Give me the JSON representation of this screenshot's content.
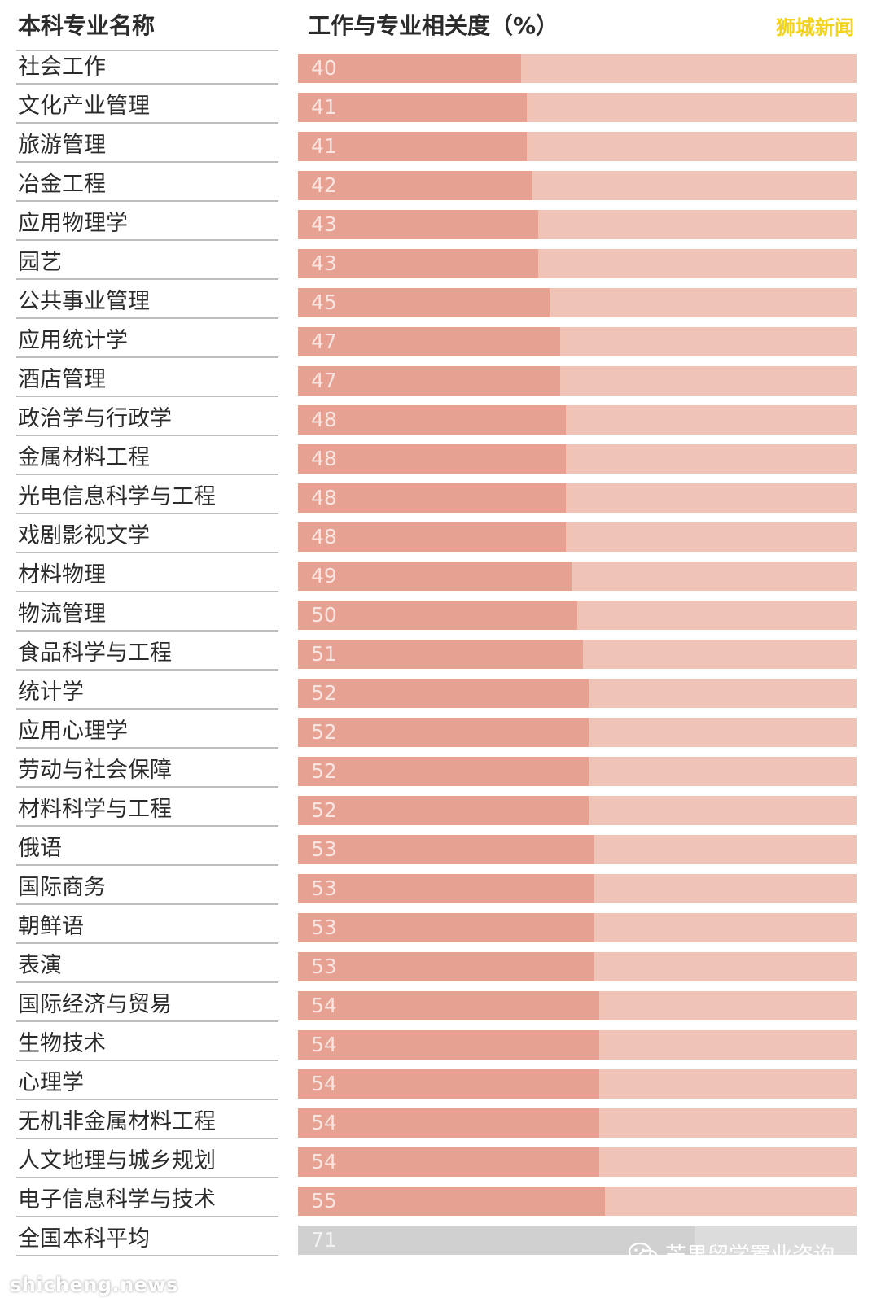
{
  "header": {
    "left_label": "本科专业名称",
    "right_label": "工作与专业相关度（%）",
    "watermark": "狮城新闻"
  },
  "footer": {
    "watermark_account": "芒果留学置业咨询",
    "site_watermark": "shicheng.news"
  },
  "colors": {
    "bar_fill": "#e7a192",
    "bar_track": "#f0c3b7",
    "average_fill": "#d0d0d0",
    "average_track": "#dcdcdc",
    "watermark_yellow": "#f3d31a"
  },
  "chart_data": {
    "type": "bar",
    "orientation": "horizontal",
    "xlim": [
      0,
      100
    ],
    "grid": false,
    "categories": [
      "社会工作",
      "文化产业管理",
      "旅游管理",
      "冶金工程",
      "应用物理学",
      "园艺",
      "公共事业管理",
      "应用统计学",
      "酒店管理",
      "政治学与行政学",
      "金属材料工程",
      "光电信息科学与工程",
      "戏剧影视文学",
      "材料物理",
      "物流管理",
      "食品科学与工程",
      "统计学",
      "应用心理学",
      "劳动与社会保障",
      "材料科学与工程",
      "俄语",
      "国际商务",
      "朝鲜语",
      "表演",
      "国际经济与贸易",
      "生物技术",
      "心理学",
      "无机非金属材料工程",
      "人文地理与城乡规划",
      "电子信息科学与技术",
      "全国本科平均"
    ],
    "values": [
      40,
      41,
      41,
      42,
      43,
      43,
      45,
      47,
      47,
      48,
      48,
      48,
      48,
      49,
      50,
      51,
      52,
      52,
      52,
      52,
      53,
      53,
      53,
      53,
      54,
      54,
      54,
      54,
      54,
      55,
      71
    ],
    "highlight_category": "全国本科平均"
  }
}
